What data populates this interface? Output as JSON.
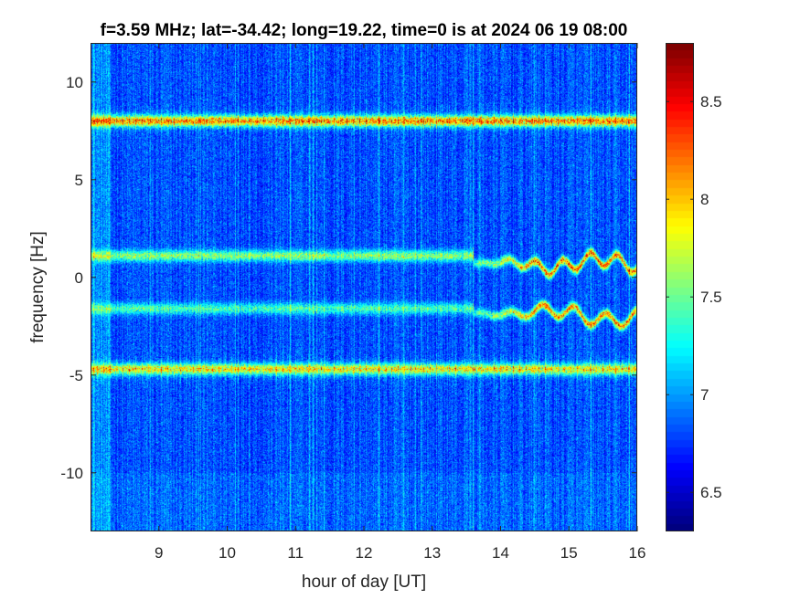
{
  "chart_data": {
    "type": "heatmap",
    "title": "f=3.59 MHz;  lat=-34.42; long=19.22, time=0 is at 2024 06 19 08:00",
    "xlabel": "hour of day [UT]",
    "ylabel": "frequency [Hz]",
    "xlim": [
      8,
      16
    ],
    "ylim": [
      -13,
      12
    ],
    "x_ticks": [
      9,
      10,
      11,
      12,
      13,
      14,
      15,
      16
    ],
    "x_tick_labels": [
      "9",
      "10",
      "11",
      "12",
      "13",
      "14",
      "15",
      "16"
    ],
    "y_ticks": [
      10,
      5,
      0,
      -5,
      -10
    ],
    "y_tick_labels": [
      "10",
      "5",
      "0",
      "-5",
      "-10"
    ],
    "colormap": "jet",
    "colorbar": {
      "range": [
        6.3,
        8.8
      ],
      "ticks": [
        8.5,
        8,
        7.5,
        7,
        6.5
      ],
      "tick_labels": [
        "8.5",
        "8",
        "7.5",
        "7",
        "6.5"
      ]
    },
    "background_level": 6.8,
    "features": [
      {
        "frequency": 8.0,
        "x_range": [
          8.0,
          16.0
        ],
        "level": 8.3
      },
      {
        "frequency": -4.7,
        "x_range": [
          8.0,
          16.0
        ],
        "level": 8.0
      },
      {
        "frequency": 1.1,
        "x_range": [
          8.0,
          13.6
        ],
        "level": 7.7
      },
      {
        "frequency": -1.6,
        "x_range": [
          8.0,
          13.6
        ],
        "level": 7.5
      },
      {
        "frequency": 0.7,
        "x_range": [
          13.6,
          16.0
        ],
        "level": 8.4
      },
      {
        "frequency": -1.8,
        "x_range": [
          13.6,
          16.0
        ],
        "level": 8.3
      }
    ],
    "grid": false
  }
}
